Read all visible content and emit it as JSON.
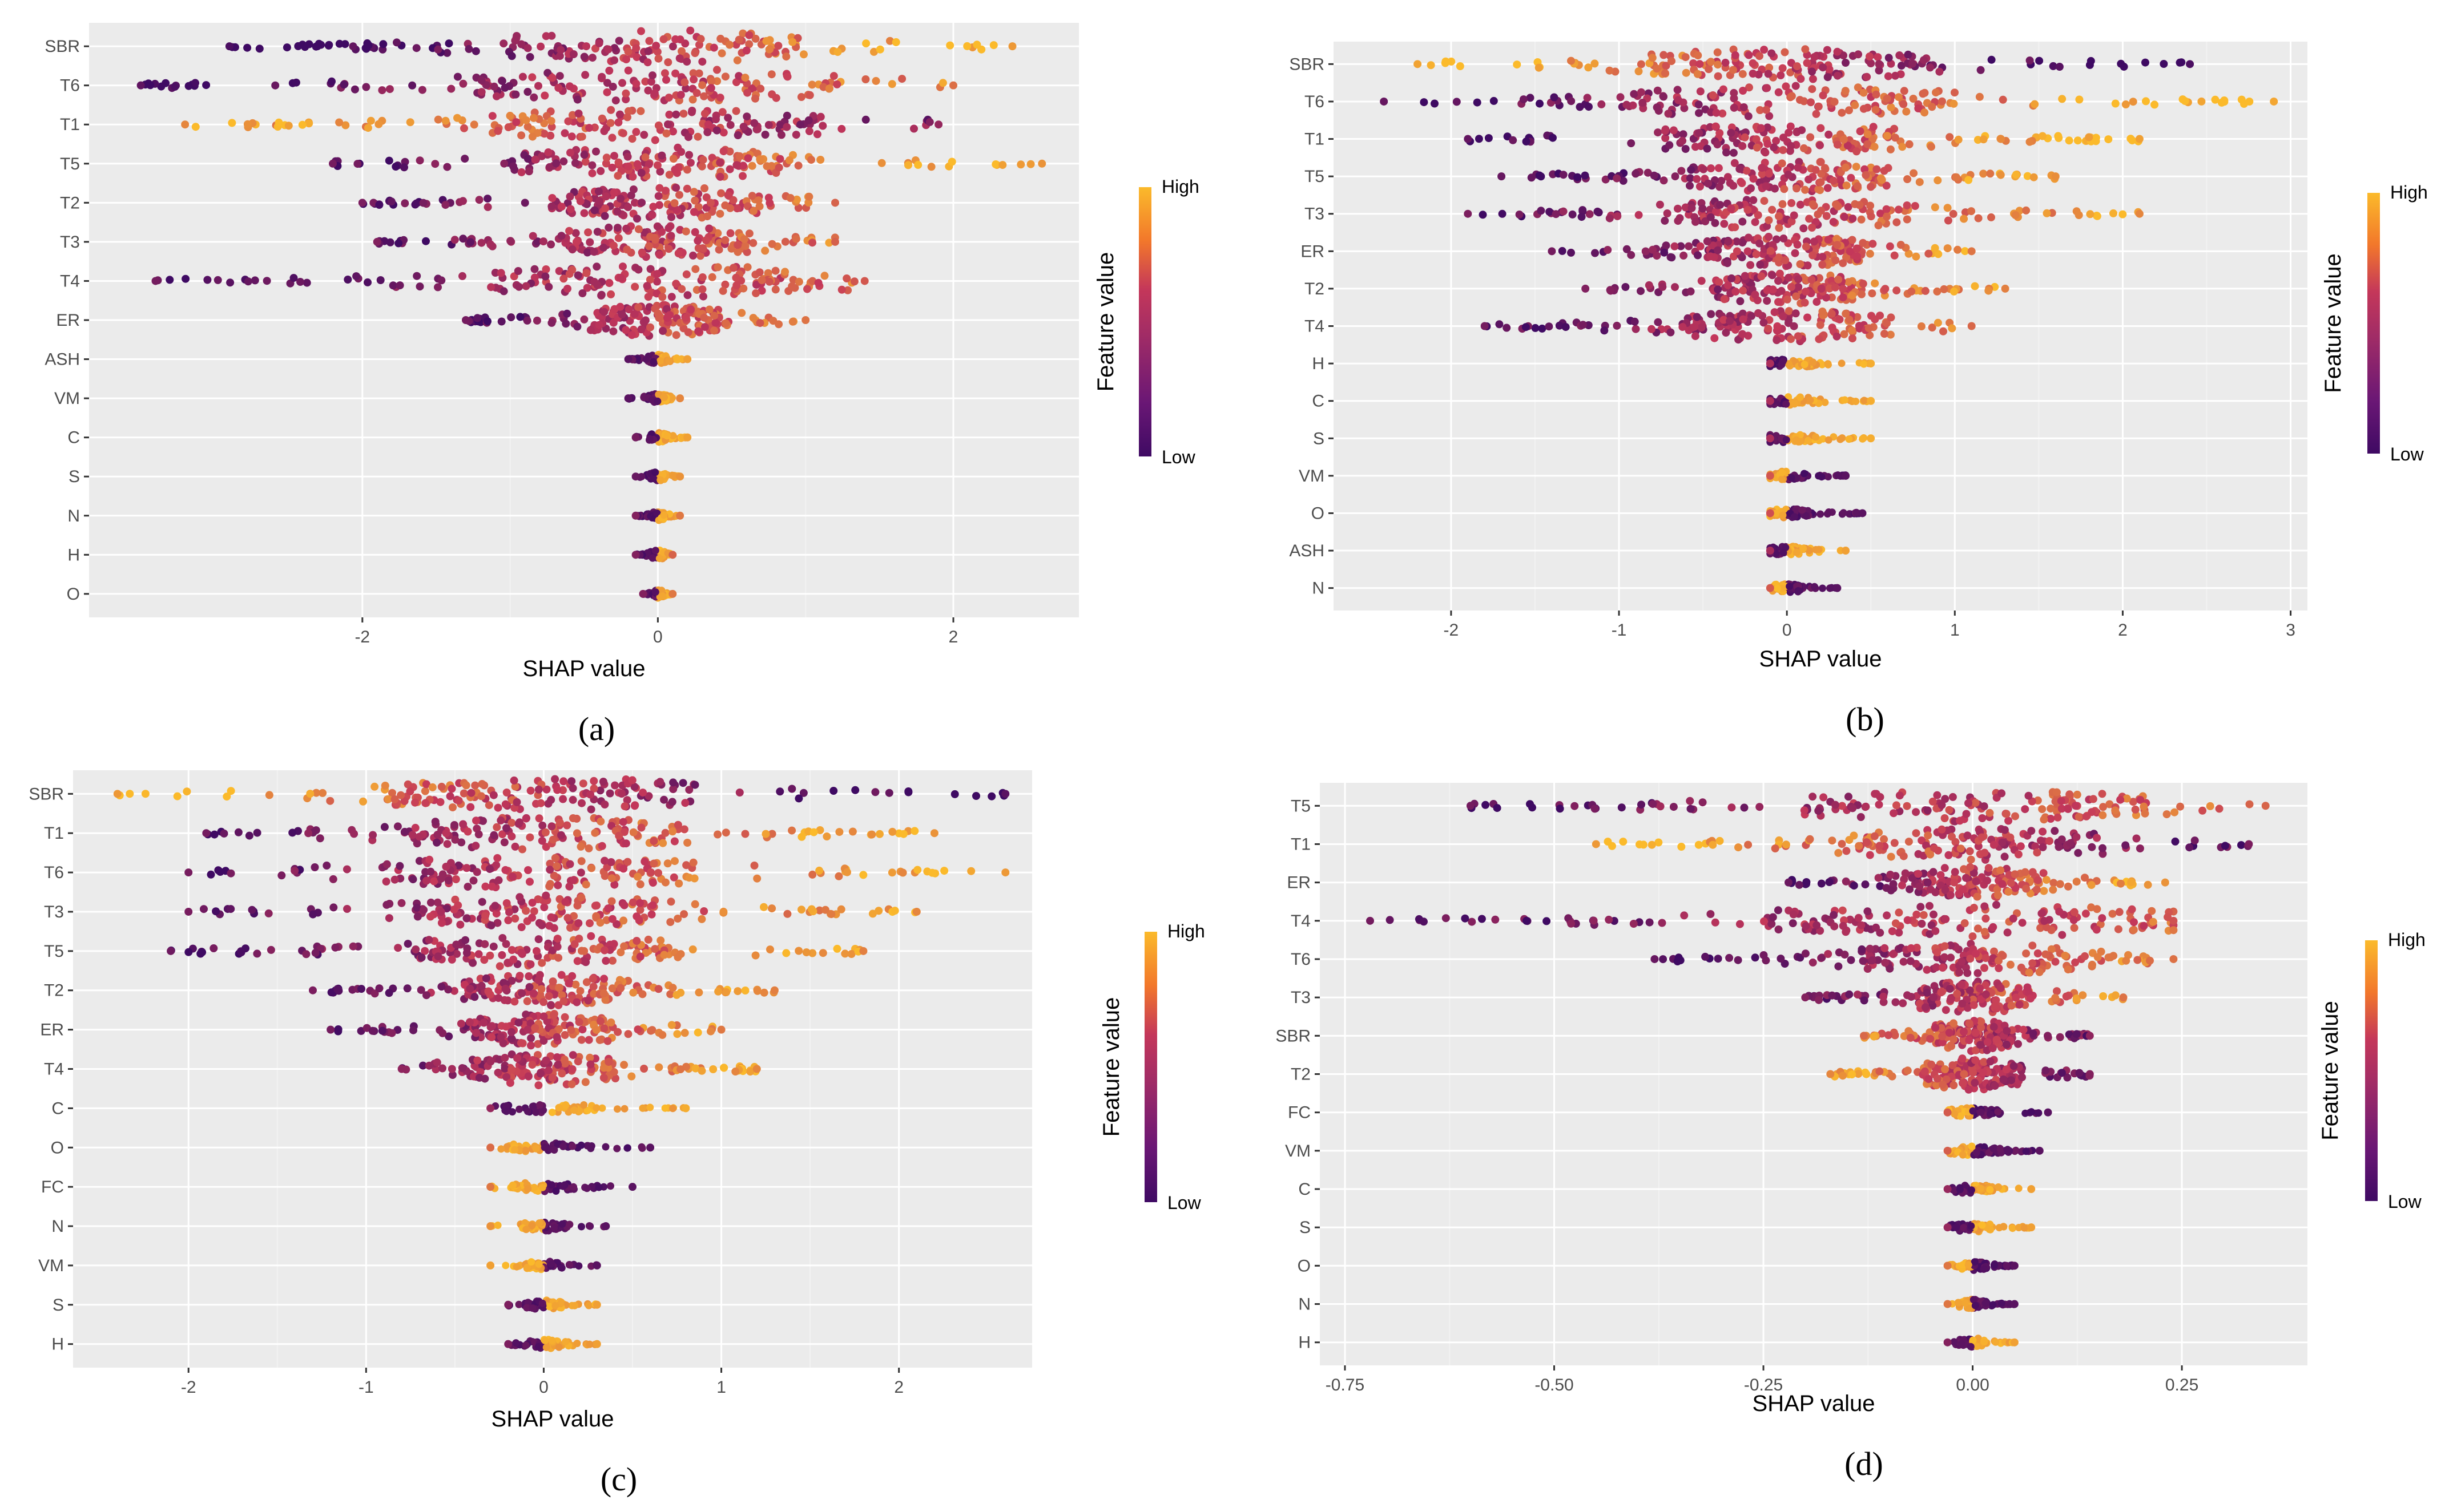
{
  "colors": {
    "panel_bg": "#EBEBEB",
    "grid_major": "#FFFFFF",
    "grid_minor": "#F2F2F2",
    "low": "#3F0A63",
    "mid": "#C4375A",
    "high": "#FBBA2B"
  },
  "legend": {
    "title": "Feature value",
    "high": "High",
    "low": "Low"
  },
  "chart_data": [
    {
      "type": "scatter",
      "subtype": "shap-beeswarm",
      "panel_label": "(a)",
      "xlabel": "SHAP value",
      "ylabel": "",
      "xlim": [
        -3.85,
        2.85
      ],
      "x_ticks": [
        -2,
        0,
        2
      ],
      "x_tick_labels": [
        "-2",
        "0",
        "2"
      ],
      "features": [
        "SBR",
        "T6",
        "T1",
        "T5",
        "T2",
        "T3",
        "T4",
        "ER",
        "ASH",
        "VM",
        "C",
        "S",
        "N",
        "H",
        "O"
      ],
      "shap_ranges": [
        [
          -2.9,
          2.4
        ],
        [
          -3.5,
          2.0
        ],
        [
          -3.2,
          1.9
        ],
        [
          -2.2,
          2.6
        ],
        [
          -2.0,
          1.2
        ],
        [
          -1.9,
          1.2
        ],
        [
          -3.4,
          1.4
        ],
        [
          -1.3,
          1.0
        ],
        [
          -0.2,
          0.2
        ],
        [
          -0.2,
          0.15
        ],
        [
          -0.15,
          0.2
        ],
        [
          -0.15,
          0.15
        ],
        [
          -0.15,
          0.15
        ],
        [
          -0.15,
          0.1
        ],
        [
          -0.1,
          0.1
        ]
      ],
      "color_direction": [
        0.9,
        0.75,
        -0.6,
        0.7,
        0.55,
        0.5,
        0.6,
        0.6,
        0.8,
        0.8,
        0.8,
        0.7,
        0.5,
        0.5,
        0.5
      ]
    },
    {
      "type": "scatter",
      "subtype": "shap-beeswarm",
      "panel_label": "(b)",
      "xlabel": "SHAP value",
      "ylabel": "",
      "xlim": [
        -2.7,
        3.1
      ],
      "x_ticks": [
        -2,
        -1,
        0,
        1,
        2,
        3
      ],
      "x_tick_labels": [
        "-2",
        "-1",
        "0",
        "1",
        "2",
        "3"
      ],
      "features": [
        "SBR",
        "T6",
        "T1",
        "T5",
        "T3",
        "ER",
        "T2",
        "T4",
        "H",
        "C",
        "S",
        "VM",
        "O",
        "ASH",
        "N"
      ],
      "shap_ranges": [
        [
          -2.2,
          2.4
        ],
        [
          -2.4,
          2.9
        ],
        [
          -1.9,
          2.1
        ],
        [
          -1.7,
          1.6
        ],
        [
          -1.9,
          2.1
        ],
        [
          -1.4,
          1.1
        ],
        [
          -1.2,
          1.3
        ],
        [
          -1.8,
          1.1
        ],
        [
          -0.1,
          0.5
        ],
        [
          -0.1,
          0.5
        ],
        [
          -0.1,
          0.5
        ],
        [
          -0.1,
          0.35
        ],
        [
          -0.1,
          0.45
        ],
        [
          -0.1,
          0.35
        ],
        [
          -0.1,
          0.3
        ]
      ],
      "color_direction": [
        -0.9,
        0.85,
        0.8,
        0.7,
        0.6,
        0.6,
        0.55,
        0.6,
        0.9,
        0.9,
        0.9,
        -0.8,
        -0.8,
        0.8,
        -0.8
      ]
    },
    {
      "type": "scatter",
      "subtype": "shap-beeswarm",
      "panel_label": "(c)",
      "xlabel": "SHAP value",
      "ylabel": "",
      "xlim": [
        -2.65,
        2.75
      ],
      "x_ticks": [
        -2,
        -1,
        0,
        1,
        2
      ],
      "x_tick_labels": [
        "-2",
        "-1",
        "0",
        "1",
        "2"
      ],
      "features": [
        "SBR",
        "T1",
        "T6",
        "T3",
        "T5",
        "T2",
        "ER",
        "T4",
        "C",
        "O",
        "FC",
        "N",
        "VM",
        "S",
        "H"
      ],
      "shap_ranges": [
        [
          -2.4,
          2.6
        ],
        [
          -1.9,
          2.2
        ],
        [
          -2.0,
          2.6
        ],
        [
          -2.0,
          2.1
        ],
        [
          -2.1,
          1.8
        ],
        [
          -1.3,
          1.3
        ],
        [
          -1.2,
          1.0
        ],
        [
          -0.8,
          1.2
        ],
        [
          -0.3,
          0.8
        ],
        [
          -0.3,
          0.6
        ],
        [
          -0.3,
          0.5
        ],
        [
          -0.3,
          0.35
        ],
        [
          -0.3,
          0.3
        ],
        [
          -0.2,
          0.3
        ],
        [
          -0.2,
          0.3
        ]
      ],
      "color_direction": [
        -0.8,
        0.7,
        0.75,
        0.6,
        0.65,
        0.55,
        0.6,
        0.6,
        0.9,
        -0.8,
        -0.8,
        -0.8,
        -0.8,
        0.8,
        0.8
      ]
    },
    {
      "type": "scatter",
      "subtype": "shap-beeswarm",
      "panel_label": "(d)",
      "xlabel": "SHAP value",
      "ylabel": "",
      "xlim": [
        -0.78,
        0.4
      ],
      "x_ticks": [
        -0.75,
        -0.5,
        -0.25,
        0.0,
        0.25
      ],
      "x_tick_labels": [
        "-0.75",
        "-0.50",
        "-0.25",
        "0.00",
        "0.25"
      ],
      "features": [
        "T5",
        "T1",
        "ER",
        "T4",
        "T6",
        "T3",
        "SBR",
        "T2",
        "FC",
        "VM",
        "C",
        "S",
        "O",
        "N",
        "H"
      ],
      "shap_ranges": [
        [
          -0.6,
          0.35
        ],
        [
          -0.45,
          0.33
        ],
        [
          -0.22,
          0.23
        ],
        [
          -0.72,
          0.24
        ],
        [
          -0.38,
          0.24
        ],
        [
          -0.2,
          0.18
        ],
        [
          -0.13,
          0.14
        ],
        [
          -0.17,
          0.14
        ],
        [
          -0.03,
          0.09
        ],
        [
          -0.03,
          0.08
        ],
        [
          -0.03,
          0.07
        ],
        [
          -0.03,
          0.07
        ],
        [
          -0.03,
          0.05
        ],
        [
          -0.03,
          0.05
        ],
        [
          -0.03,
          0.05
        ]
      ],
      "color_direction": [
        0.6,
        -0.75,
        0.7,
        0.6,
        0.7,
        0.5,
        -0.4,
        -0.6,
        -0.8,
        -0.8,
        0.8,
        0.8,
        -0.8,
        -0.8,
        0.8
      ]
    }
  ]
}
